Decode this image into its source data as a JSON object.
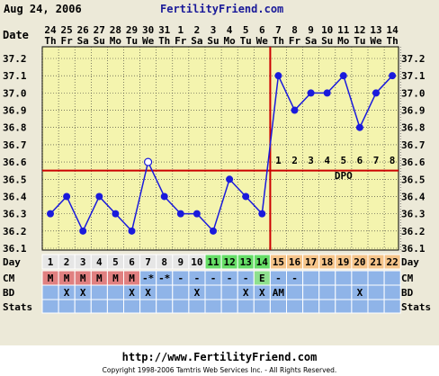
{
  "header": {
    "date": "Aug 24, 2006",
    "site": "FertilityFriend.com"
  },
  "footer": {
    "url": "http://www.FertilityFriend.com",
    "copyright": "Copyright 1998-2006 Tamtris Web Services Inc. - All Rights Reserved."
  },
  "colors": {
    "frame": "#ece9d8",
    "plot_bg": "#f4f4ae",
    "grid": "#333333",
    "line": "#1a1adc",
    "coverline": "#cc0000",
    "day_bg": "#e6e6e6",
    "fertile": "#66dd66",
    "luteal": "#f5c48a",
    "cm_m": "#e08080",
    "row_blue": "#8fb4e8",
    "cm_e": "#8ee08e",
    "stats_bg": "#8fb4e8"
  },
  "chart_data": {
    "type": "line",
    "title": "",
    "xlabel": "Date",
    "ylabel": "",
    "ylim": [
      36.1,
      37.2
    ],
    "y_ticks": [
      "36.1",
      "36.2",
      "36.3",
      "36.4",
      "36.5",
      "36.6",
      "36.7",
      "36.8",
      "36.9",
      "37.0",
      "37.1",
      "37.2"
    ],
    "dates": [
      "24",
      "25",
      "26",
      "27",
      "28",
      "29",
      "30",
      "31",
      "1",
      "2",
      "3",
      "4",
      "5",
      "6",
      "7",
      "8",
      "9",
      "10",
      "11",
      "12",
      "13",
      "14"
    ],
    "weekdays": [
      "Th",
      "Fr",
      "Sa",
      "Su",
      "Mo",
      "Tu",
      "We",
      "Th",
      "Fr",
      "Sa",
      "Su",
      "Mo",
      "Tu",
      "We",
      "Th",
      "Fr",
      "Sa",
      "Su",
      "Mo",
      "Tu",
      "We",
      "Th"
    ],
    "cycle_days": [
      "1",
      "2",
      "3",
      "4",
      "5",
      "6",
      "7",
      "8",
      "9",
      "10",
      "11",
      "12",
      "13",
      "14",
      "15",
      "16",
      "17",
      "18",
      "19",
      "20",
      "21",
      "22"
    ],
    "series": [
      {
        "values": [
          36.3,
          36.4,
          36.2,
          36.4,
          36.3,
          36.2,
          36.6,
          36.4,
          36.3,
          36.3,
          36.2,
          36.5,
          36.4,
          36.3,
          37.1,
          36.9,
          37.0,
          37.0,
          37.1,
          36.8,
          37.0,
          37.1
        ],
        "open_marker_index": 6
      }
    ],
    "coverline": 36.55,
    "ovulation_day_index": 13,
    "dpo_labels": [
      "1",
      "2",
      "3",
      "4",
      "5",
      "6",
      "7",
      "8"
    ],
    "dpo_text": "DPO",
    "fertile_day_indices": [
      10,
      11,
      12,
      13
    ],
    "rows": {
      "day_label": "Day",
      "cm_label": "CM",
      "bd_label": "BD",
      "stats_label": "Stats",
      "cm": [
        "M",
        "M",
        "M",
        "M",
        "M",
        "M",
        "-*",
        "-*",
        "-",
        "-",
        "-",
        "-",
        "-",
        "E",
        "-",
        "-",
        "",
        "",
        "",
        "",
        "",
        ""
      ],
      "bd": [
        "",
        "X",
        "X",
        "",
        "",
        "X",
        "X",
        "",
        "",
        "X",
        "",
        "",
        "X",
        "X",
        "AM",
        "",
        "",
        "",
        "",
        "X",
        "",
        ""
      ]
    }
  }
}
